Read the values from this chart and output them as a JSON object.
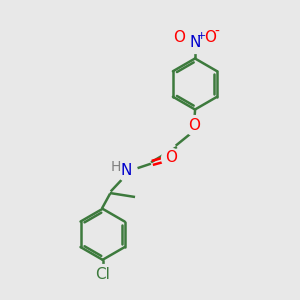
{
  "background_color": "#e8e8e8",
  "bond_color": "#3d7a3d",
  "bond_width": 1.8,
  "atom_colors": {
    "O": "#ff0000",
    "N_nitro": "#0000cc",
    "O_nitro": "#ff0000",
    "N_amide": "#0000cc",
    "Cl": "#3d7a3d",
    "H": "#808080"
  },
  "font_size": 10,
  "figsize": [
    3.0,
    3.0
  ],
  "dpi": 100
}
